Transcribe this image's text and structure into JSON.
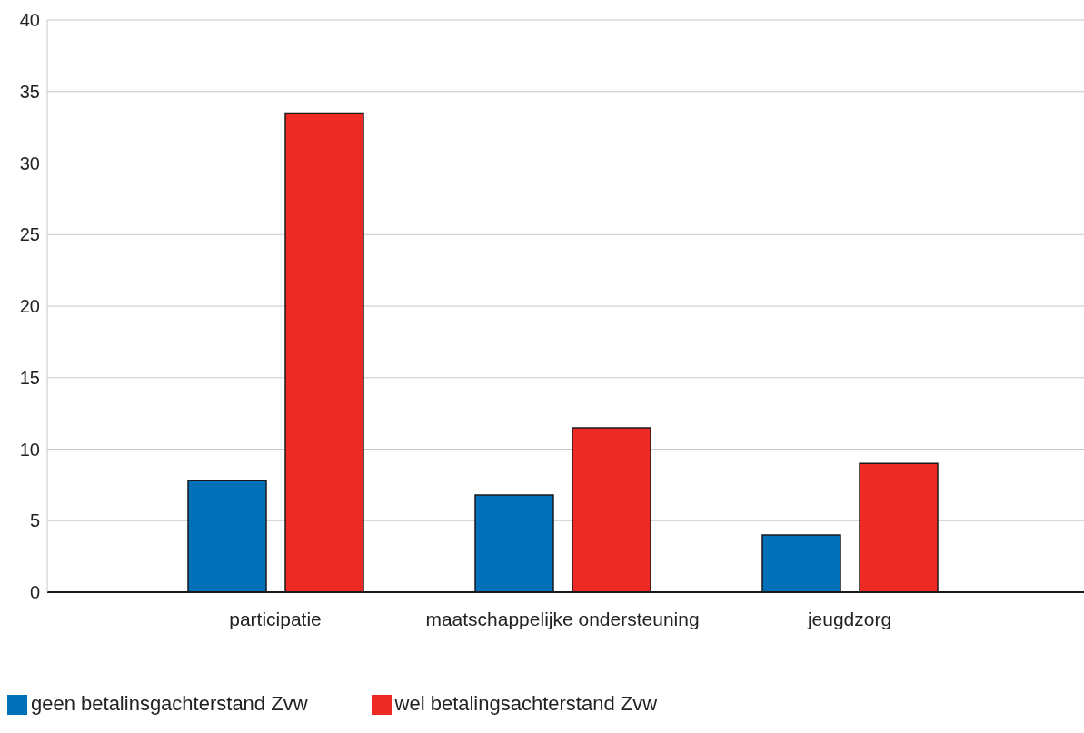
{
  "chart_data": {
    "type": "bar",
    "categories": [
      "participatie",
      "maatschappelijke ondersteuning",
      "jeugdzorg"
    ],
    "series": [
      {
        "name": "geen betalinsgachterstand Zvw",
        "color": "#0070b8",
        "values": [
          7.8,
          6.8,
          4.0
        ]
      },
      {
        "name": "wel betalingsachterstand Zvw",
        "color": "#ee2a24",
        "values": [
          33.5,
          11.5,
          9.0
        ]
      }
    ],
    "ylim": [
      0,
      40
    ],
    "yticks": [
      0,
      5,
      10,
      15,
      20,
      25,
      30,
      35,
      40
    ],
    "grid": "y",
    "legend": "bottom left"
  }
}
